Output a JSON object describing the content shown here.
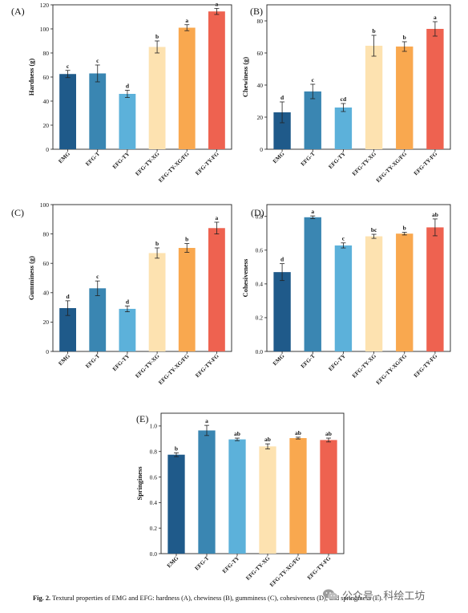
{
  "categories": [
    "EMG",
    "EFG-T",
    "EFG-TY",
    "EFG-TY-XG",
    "EFG-TY-XG/FG",
    "EFG-TY-FG"
  ],
  "colors": [
    "#1f5a8a",
    "#3a86b2",
    "#5cb1da",
    "#fde2b0",
    "#f9a84f",
    "#ee6250"
  ],
  "chart_data": [
    {
      "type": "bar",
      "panel": "(A)",
      "ylabel": "Hardness (g)",
      "ylim": [
        0,
        120
      ],
      "yticks": [
        0,
        20,
        40,
        60,
        80,
        100,
        120
      ],
      "categories": [
        "EMG",
        "EFG-T",
        "EFG-TY",
        "EFG-TY-XG",
        "EFG-TY-XG/FG",
        "EFG-TY-FG"
      ],
      "values": [
        62.5,
        63.0,
        46.0,
        85.0,
        101.0,
        114.5
      ],
      "errors": [
        3,
        7,
        3,
        5,
        2.5,
        2.5
      ],
      "letters": [
        "c",
        "c",
        "d",
        "b",
        "a",
        "a"
      ]
    },
    {
      "type": "bar",
      "panel": "(B)",
      "ylabel": "Chewiness (g)",
      "ylim": [
        0,
        90
      ],
      "yticks": [
        0,
        20,
        40,
        60,
        80
      ],
      "categories": [
        "EMG",
        "EFG-T",
        "EFG-TY",
        "EFG-TY-XG",
        "EFG-TY-XG/FG",
        "EFG-TY-FG"
      ],
      "values": [
        23.0,
        36.0,
        26.0,
        64.5,
        64.0,
        75.0
      ],
      "errors": [
        6.5,
        4.5,
        2.5,
        6.5,
        3,
        4.5
      ],
      "letters": [
        "d",
        "c",
        "cd",
        "b",
        "b",
        "a"
      ]
    },
    {
      "type": "bar",
      "panel": "(C)",
      "ylabel": "Gumminess (g)",
      "ylim": [
        0,
        100
      ],
      "yticks": [
        0,
        20,
        40,
        60,
        80,
        100
      ],
      "categories": [
        "EMG",
        "EFG-T",
        "EFG-TY",
        "EFG-TY-XG",
        "EFG-TY-XG/FG",
        "EFG-TY-FG"
      ],
      "values": [
        29.5,
        43.0,
        29.0,
        67.0,
        70.5,
        84.0
      ],
      "errors": [
        5,
        5,
        2,
        3.5,
        3,
        4
      ],
      "letters": [
        "d",
        "c",
        "d",
        "b",
        "b",
        "a"
      ]
    },
    {
      "type": "bar",
      "panel": "(D)",
      "ylabel": "Cohesiveness",
      "ylim": [
        0,
        0.87
      ],
      "yticks": [
        0.0,
        0.2,
        0.4,
        0.6,
        0.8
      ],
      "categories": [
        "EMG",
        "EFG-T",
        "EFG-TY",
        "EFG-TY-XG",
        "EFG-TY-XG/FG",
        "EFG-TY-FG"
      ],
      "values": [
        0.47,
        0.795,
        0.628,
        0.682,
        0.698,
        0.735
      ],
      "errors": [
        0.05,
        0.008,
        0.015,
        0.012,
        0.008,
        0.05
      ],
      "letters": [
        "d",
        "a",
        "c",
        "bc",
        "b",
        "ab"
      ]
    },
    {
      "type": "bar",
      "panel": "(E)",
      "ylabel": "Springiness",
      "ylim": [
        0,
        1.1
      ],
      "yticks": [
        0.0,
        0.2,
        0.4,
        0.6,
        0.8,
        1.0
      ],
      "categories": [
        "EMG",
        "EFG-T",
        "EFG-TY",
        "EFG-TY-XG",
        "EFG-TY-XG/FG",
        "EFG-TY-FG"
      ],
      "values": [
        0.775,
        0.965,
        0.895,
        0.84,
        0.905,
        0.89
      ],
      "errors": [
        0.015,
        0.04,
        0.01,
        0.02,
        0.007,
        0.015
      ],
      "letters": [
        "b",
        "a",
        "ab",
        "ab",
        "ab",
        "ab"
      ]
    }
  ],
  "caption": {
    "label": "Fig. 2.",
    "text": "Textural properties of EMG and EFG: hardness (A), chewiness (B), gumminess (C), cohesiveness (D), and springiness (E)."
  },
  "watermark": {
    "text": "公众号 · 科绘工坊",
    "icon": "wechat-icon"
  }
}
